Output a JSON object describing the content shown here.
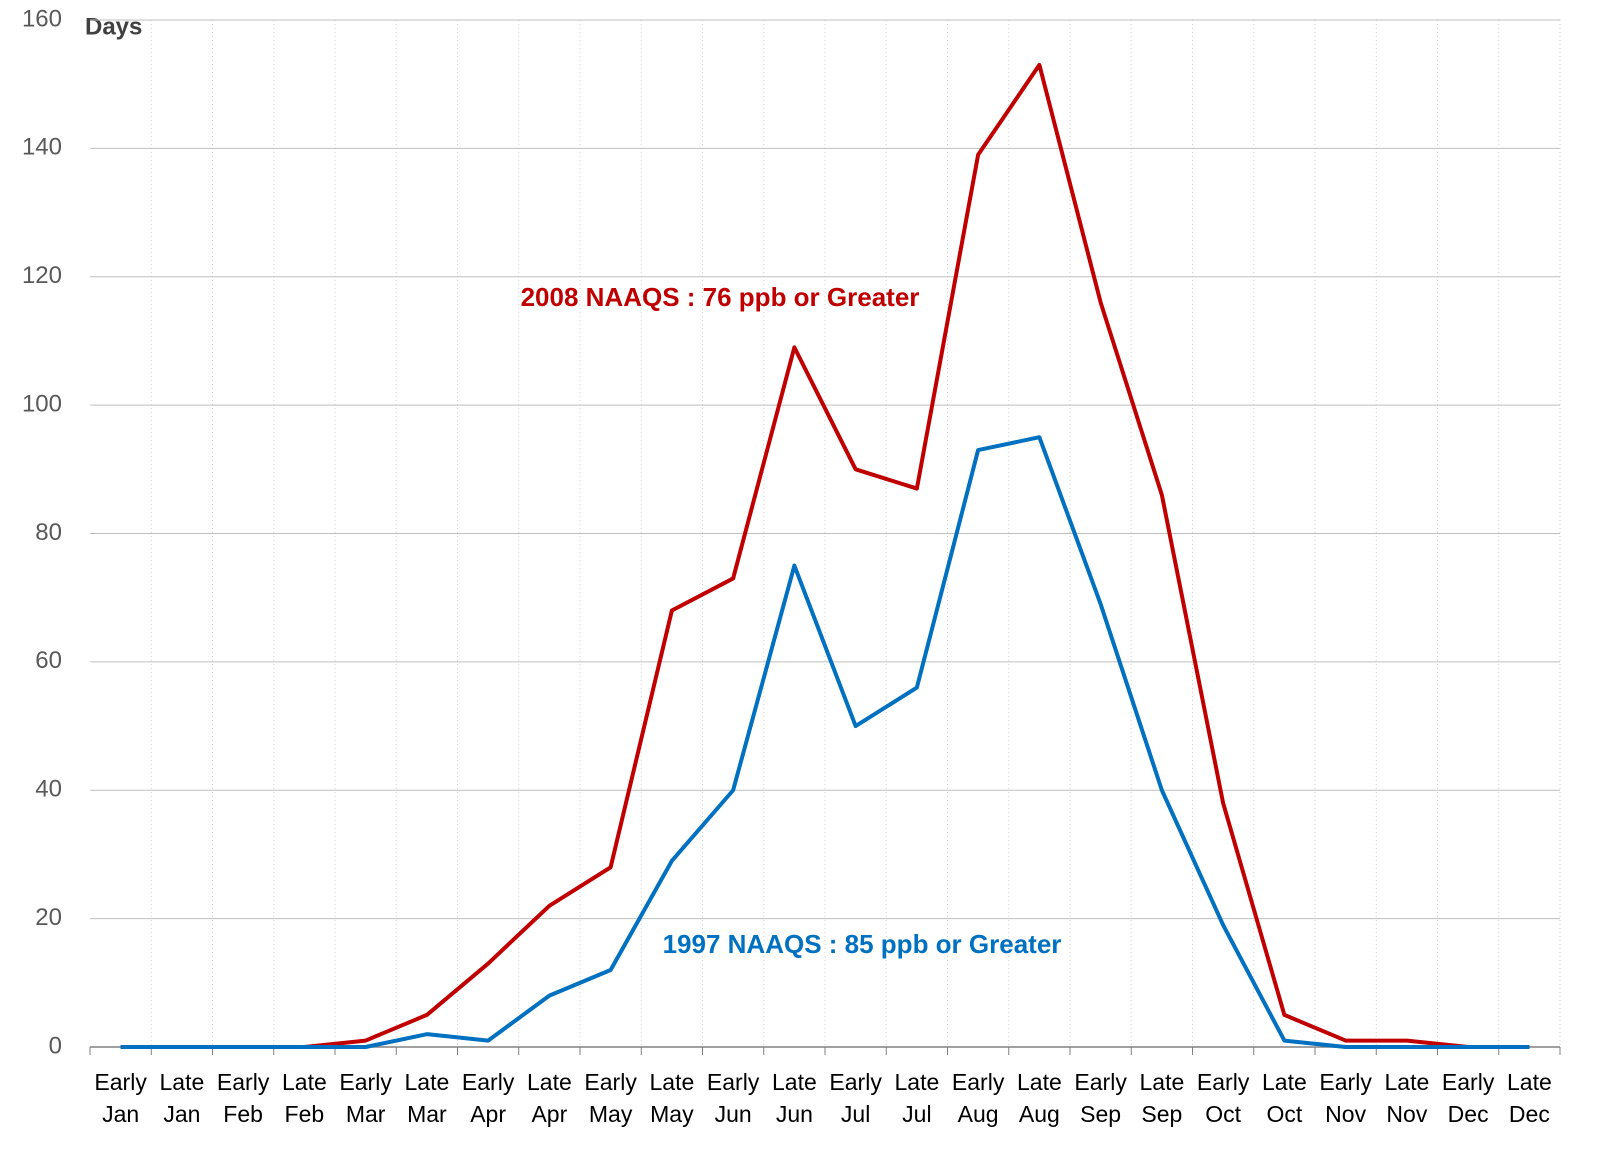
{
  "chart_data": {
    "type": "line",
    "y_label": "Days",
    "categories": [
      "Early Jan",
      "Late Jan",
      "Early Feb",
      "Late Feb",
      "Early Mar",
      "Late Mar",
      "Early Apr",
      "Late Apr",
      "Early May",
      "Late May",
      "Early Jun",
      "Late Jun",
      "Early Jul",
      "Late Jul",
      "Early Aug",
      "Late Aug",
      "Early Sep",
      "Late Sep",
      "Early Oct",
      "Late Oct",
      "Early Nov",
      "Late Nov",
      "Early Dec",
      "Late Dec"
    ],
    "series": [
      {
        "name": "2008 NAAQS : 76 ppb or Greater",
        "color": "#c00000",
        "values": [
          0,
          0,
          0,
          0,
          1,
          5,
          13,
          22,
          28,
          68,
          73,
          109,
          90,
          87,
          139,
          153,
          116,
          86,
          38,
          5,
          1,
          1,
          0,
          0
        ]
      },
      {
        "name": "1997 NAAQS : 85 ppb or Greater",
        "color": "#0070c0",
        "values": [
          0,
          0,
          0,
          0,
          0,
          2,
          1,
          8,
          12,
          29,
          40,
          75,
          50,
          56,
          93,
          95,
          69,
          40,
          19,
          1,
          0,
          0,
          0,
          0
        ]
      }
    ],
    "ylim": [
      0,
      160
    ],
    "yticks": [
      0,
      20,
      40,
      60,
      80,
      100,
      120,
      140,
      160
    ],
    "grid": true
  }
}
